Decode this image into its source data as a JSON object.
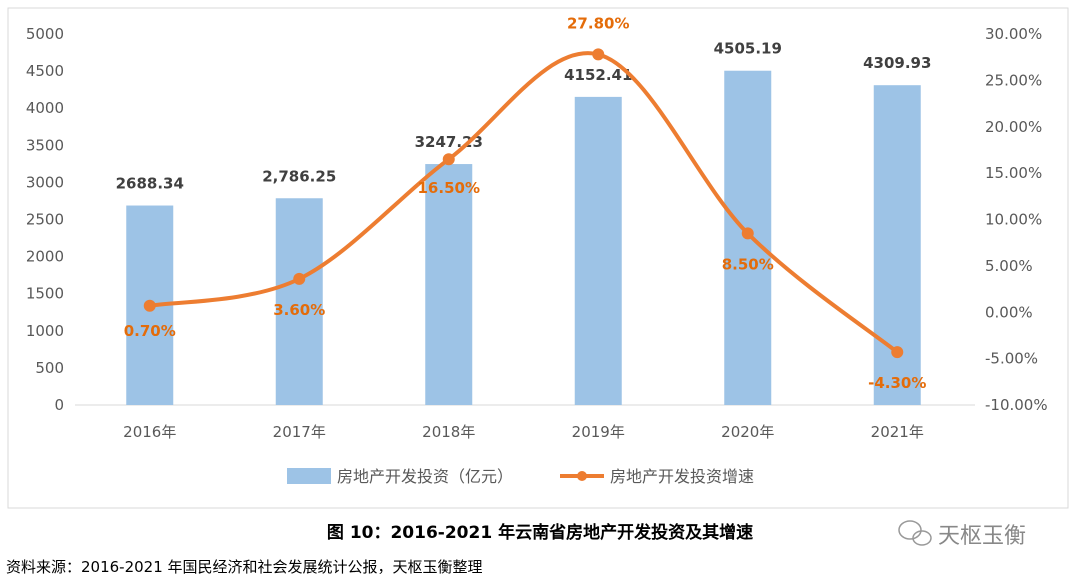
{
  "chart_data": {
    "type": "bar",
    "title": "图 10：2016-2021 年云南省房地产开发投资及其增速",
    "categories": [
      "2016年",
      "2017年",
      "2018年",
      "2019年",
      "2020年",
      "2021年"
    ],
    "series": [
      {
        "name": "房地产开发投资（亿元）",
        "type": "bar",
        "axis": "left",
        "color": "#9DC3E6",
        "values": [
          2688.34,
          2786.25,
          3247.23,
          4152.41,
          4505.19,
          4309.93
        ],
        "labels": [
          "2688.34",
          "2,786.25",
          "3247.23",
          "4152.41",
          "4505.19",
          "4309.93"
        ]
      },
      {
        "name": "房地产开发投资增速",
        "type": "line",
        "axis": "right",
        "color": "#ED7D31",
        "values": [
          0.7,
          3.6,
          16.5,
          27.8,
          8.5,
          -4.3
        ],
        "labels": [
          "0.70%",
          "3.60%",
          "16.50%",
          "27.80%",
          "8.50%",
          "-4.30%"
        ]
      }
    ],
    "y_left": {
      "lim": [
        0,
        5000
      ],
      "ticks": [
        0,
        500,
        1000,
        1500,
        2000,
        2500,
        3000,
        3500,
        4000,
        4500,
        5000
      ]
    },
    "y_right": {
      "lim": [
        -10,
        30
      ],
      "ticks": [
        "-10.00%",
        "-5.00%",
        "0.00%",
        "5.00%",
        "10.00%",
        "15.00%",
        "20.00%",
        "25.00%",
        "30.00%"
      ]
    },
    "legend_position": "bottom",
    "grid": false
  },
  "source": "资料来源：2016-2021 年国民经济和社会发展统计公报，天枢玉衡整理",
  "watermark": "天枢玉衡"
}
